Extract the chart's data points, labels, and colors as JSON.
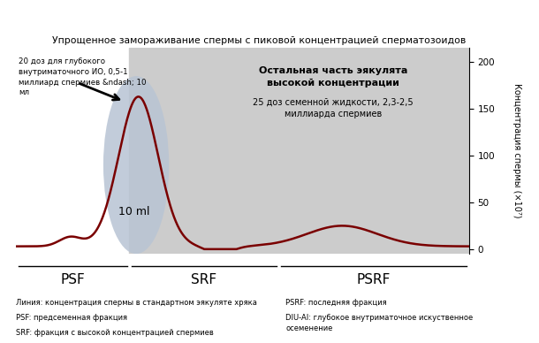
{
  "title": "Упрощенное замораживание спермы с пиковой концентрацией сперматозоидов",
  "ylabel": "Концентрация спермы (×10⁷)",
  "yticks": [
    0,
    50,
    100,
    150,
    200
  ],
  "ylim": [
    -5,
    215
  ],
  "annotation_left": "20 доз для глубокого\nвнутриматочного ИО, 0,5-1\nмиллиард спермиев &ndash; 10\nмл",
  "annotation_center_title": "Остальная часть эякулята\nвысокой концентрации",
  "annotation_center_sub": "25 доз семенной жидкости, 2,3-2,5\nмиллиарда спермиев",
  "label_PSF": "PSF",
  "label_SRF": "SRF",
  "label_PSRF": "PSRF",
  "ellipse_label": "10 ml",
  "legend_line1": "Линия: концентрация спермы в стандартном эякуляте хряка",
  "legend_line2": "PSF: предсеменная фракция",
  "legend_line3": "SRF: фракция с высокой концентрацией спермиев",
  "legend_right1": "PSRF: последняя фракция",
  "legend_right2": "DIU-AI: глубокое внутриматочное искуственное\nосеменение",
  "curve_color": "#7a0000",
  "ellipse_color": "#b8c4d4",
  "gray_box_color": "#cccccc",
  "psf_end": 2.5,
  "srf_end": 5.8,
  "xlim_left": 0.0,
  "xlim_right": 10.0
}
